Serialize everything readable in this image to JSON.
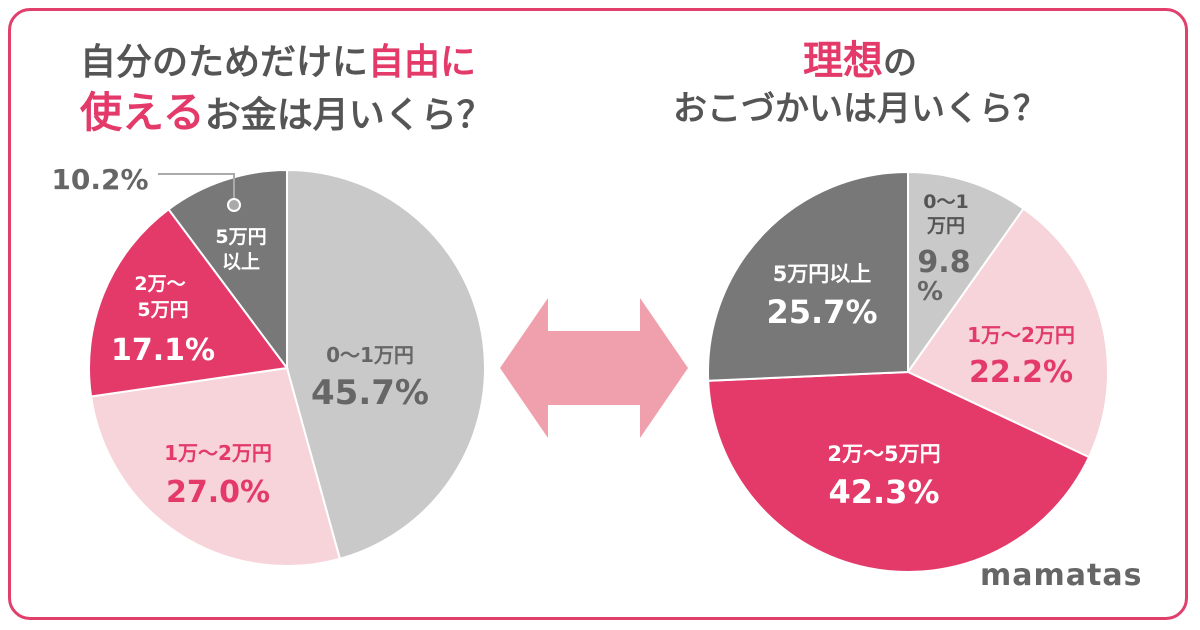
{
  "left_title": {
    "line1_pre": "自分のためだけに",
    "line1_hl": "自由に",
    "line2_hl": "使える",
    "line2_post": "お金は月いくら？"
  },
  "right_title": {
    "line1_hl": "理想",
    "line1_post": "の",
    "line2": "おこづかいは月いくら？"
  },
  "brand": "mamatas",
  "colors": {
    "gray_light": "#c9c9c9",
    "pink_light": "#f7d3da",
    "pink": "#e33a6a",
    "gray_dark": "#787878",
    "arrow": "#f0a0ac",
    "frame": "#e0406b"
  },
  "chart_data": [
    {
      "type": "pie",
      "title": "自分のためだけに自由に使えるお金は月いくら？",
      "slices": [
        {
          "label": "0〜1万円",
          "value": 45.7,
          "value_label": "45.7%"
        },
        {
          "label": "1万〜2万円",
          "value": 27.0,
          "value_label": "27.0%"
        },
        {
          "label": "2万〜5万円",
          "value": 17.1,
          "value_label": "17.1%"
        },
        {
          "label": "5万円以上",
          "value": 10.2,
          "value_label": "10.2%"
        }
      ]
    },
    {
      "type": "pie",
      "title": "理想のおこづかいは月いくら？",
      "slices": [
        {
          "label": "0〜1万円",
          "value": 9.8,
          "value_label": "9.8%"
        },
        {
          "label": "1万〜2万円",
          "value": 22.2,
          "value_label": "22.2%"
        },
        {
          "label": "2万〜5万円",
          "value": 42.3,
          "value_label": "42.3%"
        },
        {
          "label": "5万円以上",
          "value": 25.7,
          "value_label": "25.7%"
        }
      ]
    }
  ]
}
